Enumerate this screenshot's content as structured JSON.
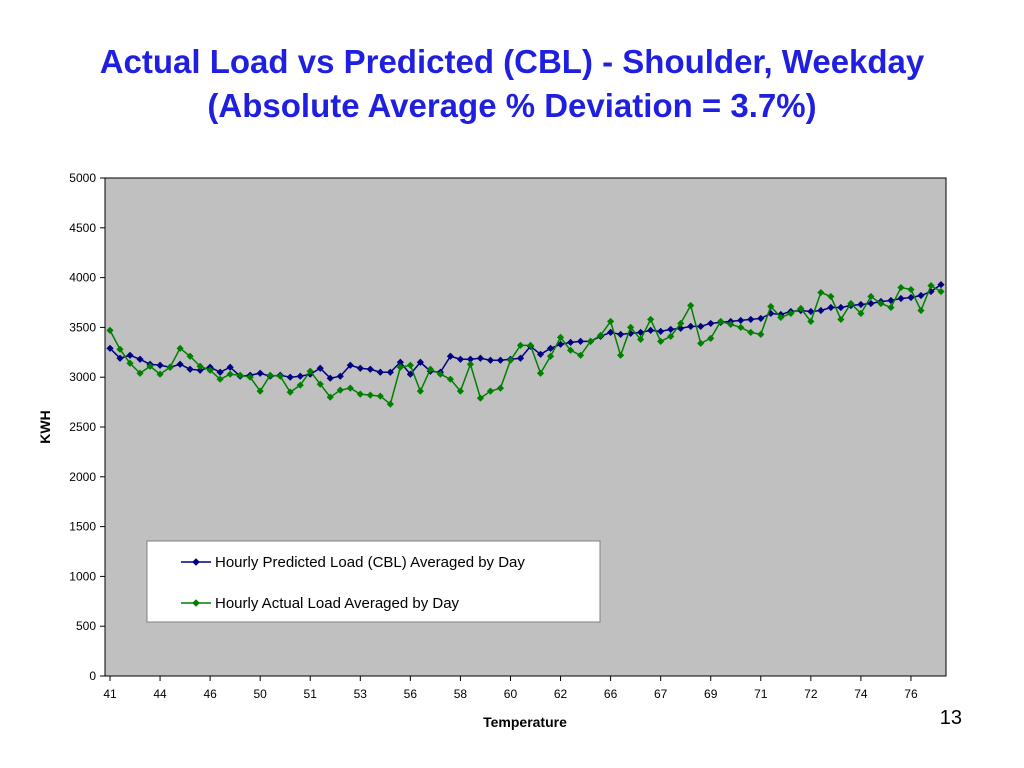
{
  "slide": {
    "title_line1": "Actual Load vs Predicted (CBL) - Shoulder, Weekday",
    "title_line2": "(Absolute Average % Deviation = 3.7%)",
    "page_number": "13"
  },
  "colors": {
    "plot_background": "#c0c0c0",
    "predicted": "#000080",
    "actual": "#008000",
    "title": "#1f1fdf"
  },
  "chart_data": {
    "type": "line",
    "xlabel": "Temperature",
    "ylabel": "KWH",
    "ylim": [
      0,
      5000
    ],
    "y_ticks": [
      0,
      500,
      1000,
      1500,
      2000,
      2500,
      3000,
      3500,
      4000,
      4500,
      5000
    ],
    "x_tick_labels": [
      "41",
      "44",
      "46",
      "50",
      "51",
      "53",
      "56",
      "58",
      "60",
      "62",
      "66",
      "67",
      "69",
      "71",
      "72",
      "74",
      "76"
    ],
    "grid": false,
    "legend_position": "lower-center",
    "series": [
      {
        "name": "Hourly Predicted Load (CBL) Averaged by Day",
        "color": "#000080",
        "marker": "diamond",
        "values": [
          3290,
          3190,
          3220,
          3180,
          3130,
          3120,
          3100,
          3130,
          3080,
          3070,
          3100,
          3050,
          3100,
          3010,
          3020,
          3040,
          3010,
          3020,
          3000,
          3010,
          3030,
          3090,
          2990,
          3010,
          3120,
          3090,
          3080,
          3050,
          3050,
          3150,
          3030,
          3150,
          3060,
          3050,
          3210,
          3180,
          3180,
          3190,
          3170,
          3170,
          3180,
          3190,
          3310,
          3230,
          3290,
          3330,
          3350,
          3360,
          3360,
          3410,
          3450,
          3430,
          3440,
          3450,
          3470,
          3460,
          3480,
          3490,
          3510,
          3510,
          3540,
          3550,
          3560,
          3570,
          3580,
          3590,
          3640,
          3630,
          3660,
          3670,
          3660,
          3670,
          3700,
          3700,
          3720,
          3730,
          3740,
          3760,
          3770,
          3790,
          3800,
          3820,
          3860,
          3930
        ]
      },
      {
        "name": "Hourly Actual Load Averaged by Day",
        "color": "#008000",
        "marker": "diamond",
        "values": [
          3470,
          3280,
          3140,
          3040,
          3110,
          3030,
          3100,
          3290,
          3210,
          3110,
          3070,
          2980,
          3030,
          3020,
          3000,
          2860,
          3020,
          3010,
          2850,
          2920,
          3060,
          2930,
          2800,
          2870,
          2890,
          2830,
          2820,
          2810,
          2730,
          3100,
          3120,
          2860,
          3080,
          3030,
          2980,
          2860,
          3130,
          2790,
          2860,
          2890,
          3170,
          3320,
          3320,
          3040,
          3210,
          3400,
          3270,
          3220,
          3360,
          3420,
          3560,
          3220,
          3500,
          3380,
          3580,
          3360,
          3410,
          3540,
          3720,
          3340,
          3390,
          3560,
          3530,
          3500,
          3450,
          3430,
          3710,
          3600,
          3640,
          3690,
          3560,
          3850,
          3810,
          3580,
          3740,
          3640,
          3810,
          3740,
          3700,
          3900,
          3880,
          3670,
          3920,
          3860
        ]
      }
    ]
  }
}
